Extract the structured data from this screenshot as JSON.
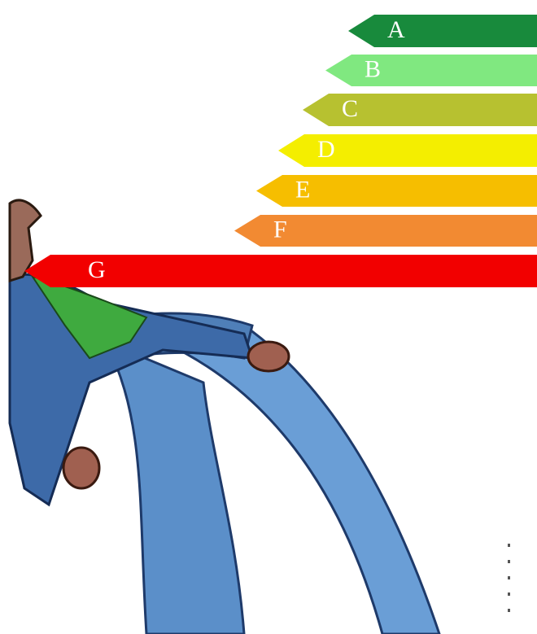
{
  "energy_label": {
    "classes": [
      "A",
      "B",
      "C",
      "D",
      "E",
      "F",
      "G"
    ]
  }
}
